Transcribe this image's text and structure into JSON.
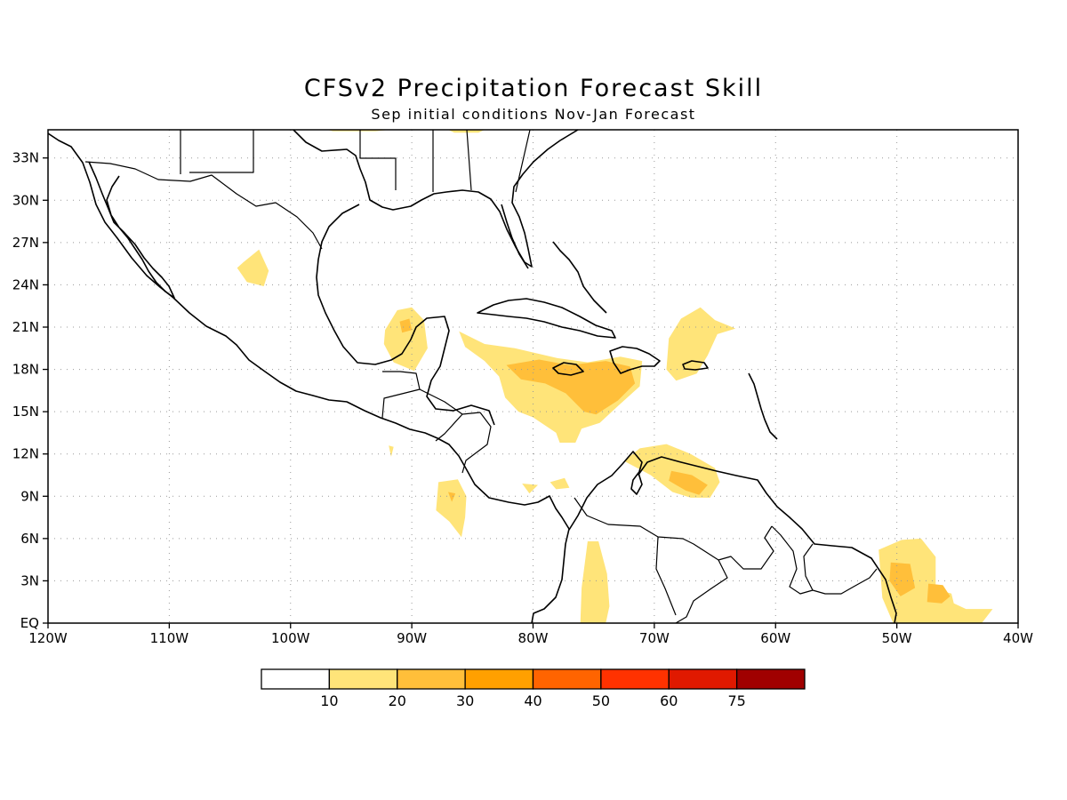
{
  "title": "CFSv2 Precipitation Forecast Skill",
  "subtitle": "Sep initial conditions   Nov-Jan Forecast",
  "map": {
    "lon_range": [
      -120,
      -40
    ],
    "lat_range": [
      0,
      35
    ],
    "lon_ticks": [
      {
        "value": -120,
        "label": "120W"
      },
      {
        "value": -110,
        "label": "110W"
      },
      {
        "value": -100,
        "label": "100W"
      },
      {
        "value": -90,
        "label": "90W"
      },
      {
        "value": -80,
        "label": "80W"
      },
      {
        "value": -70,
        "label": "70W"
      },
      {
        "value": -60,
        "label": "60W"
      },
      {
        "value": -50,
        "label": "50W"
      },
      {
        "value": -40,
        "label": "40W"
      }
    ],
    "lat_ticks": [
      {
        "value": 0,
        "label": "EQ"
      },
      {
        "value": 3,
        "label": "3N"
      },
      {
        "value": 6,
        "label": "6N"
      },
      {
        "value": 9,
        "label": "9N"
      },
      {
        "value": 12,
        "label": "12N"
      },
      {
        "value": 15,
        "label": "15N"
      },
      {
        "value": 18,
        "label": "18N"
      },
      {
        "value": 21,
        "label": "21N"
      },
      {
        "value": 24,
        "label": "24N"
      },
      {
        "value": 27,
        "label": "27N"
      },
      {
        "value": 30,
        "label": "30N"
      },
      {
        "value": 33,
        "label": "33N"
      }
    ],
    "grid": true
  },
  "colorbar": {
    "colors": [
      "#ffffff",
      "#ffe479",
      "#ffbf3a",
      "#ffa000",
      "#ff6400",
      "#ff3200",
      "#e01900",
      "#a00000"
    ],
    "labels": [
      "10",
      "20",
      "30",
      "40",
      "50",
      "60",
      "75"
    ]
  },
  "skill_regions": [
    {
      "name": "northern-mexico",
      "level": 1,
      "pts": [
        [
          -103.9,
          25.6
        ],
        [
          -102.6,
          26.5
        ],
        [
          -101.8,
          25.0
        ],
        [
          -102.2,
          23.9
        ],
        [
          -103.6,
          24.2
        ],
        [
          -104.4,
          25.2
        ]
      ]
    },
    {
      "name": "us-gulf-coast-west",
      "level": 1,
      "pts": [
        [
          -96.5,
          34.9
        ],
        [
          -93.0,
          34.9
        ],
        [
          -91.8,
          35
        ],
        [
          -97,
          35
        ]
      ]
    },
    {
      "name": "us-gulf-coast-east",
      "level": 1,
      "pts": [
        [
          -87,
          35
        ],
        [
          -84,
          35
        ],
        [
          -84.5,
          34.8
        ],
        [
          -86.5,
          34.8
        ]
      ]
    },
    {
      "name": "yucatan",
      "level": 1,
      "pts": [
        [
          -92.2,
          20.8
        ],
        [
          -91.2,
          22.2
        ],
        [
          -90.0,
          22.4
        ],
        [
          -89.0,
          21.5
        ],
        [
          -88.7,
          19.5
        ],
        [
          -89.8,
          17.9
        ],
        [
          -91.5,
          18.5
        ],
        [
          -92.3,
          19.8
        ]
      ]
    },
    {
      "name": "yucatan-core",
      "level": 2,
      "pts": [
        [
          -91.0,
          21.4
        ],
        [
          -90.2,
          21.6
        ],
        [
          -90.0,
          20.8
        ],
        [
          -90.8,
          20.6
        ]
      ]
    },
    {
      "name": "western-caribbean",
      "level": 1,
      "pts": [
        [
          -86.1,
          20.7
        ],
        [
          -84.0,
          19.8
        ],
        [
          -81.5,
          19.5
        ],
        [
          -78.0,
          18.8
        ],
        [
          -75.5,
          18.5
        ],
        [
          -72.8,
          18.9
        ],
        [
          -71.0,
          18.6
        ],
        [
          -71.2,
          16.8
        ],
        [
          -73.0,
          15.4
        ],
        [
          -74.5,
          14.2
        ],
        [
          -76.0,
          13.8
        ],
        [
          -76.5,
          12.8
        ],
        [
          -77.8,
          12.8
        ],
        [
          -78.1,
          13.5
        ],
        [
          -80.0,
          14.6
        ],
        [
          -81.2,
          15.0
        ],
        [
          -82.3,
          16.0
        ],
        [
          -82.8,
          17.5
        ],
        [
          -84.0,
          18.6
        ],
        [
          -85.6,
          19.6
        ]
      ]
    },
    {
      "name": "western-caribbean-core",
      "level": 2,
      "pts": [
        [
          -82.2,
          18.3
        ],
        [
          -79.5,
          18.7
        ],
        [
          -77.0,
          18.3
        ],
        [
          -74.0,
          18.6
        ],
        [
          -72.0,
          18.2
        ],
        [
          -71.6,
          17.0
        ],
        [
          -73.0,
          15.8
        ],
        [
          -74.8,
          14.8
        ],
        [
          -75.8,
          15.0
        ],
        [
          -77.3,
          16.3
        ],
        [
          -79.0,
          17.0
        ],
        [
          -81.0,
          17.3
        ]
      ]
    },
    {
      "name": "puerto-rico-region",
      "level": 1,
      "pts": [
        [
          -67.8,
          21.6
        ],
        [
          -66.2,
          22.4
        ],
        [
          -65.0,
          21.5
        ],
        [
          -63.3,
          20.9
        ],
        [
          -64.8,
          20.5
        ],
        [
          -65.6,
          19.0
        ],
        [
          -66.5,
          17.7
        ],
        [
          -68.2,
          17.2
        ],
        [
          -69.0,
          18.0
        ],
        [
          -68.8,
          20.2
        ]
      ]
    },
    {
      "name": "venezuela-coast",
      "level": 1,
      "pts": [
        [
          -71.2,
          12.4
        ],
        [
          -69.0,
          12.7
        ],
        [
          -67.0,
          12.0
        ],
        [
          -65.0,
          11.0
        ],
        [
          -64.6,
          10.0
        ],
        [
          -65.4,
          8.9
        ],
        [
          -67.0,
          8.9
        ],
        [
          -68.5,
          9.3
        ],
        [
          -70.3,
          10.5
        ],
        [
          -72.5,
          11.5
        ]
      ]
    },
    {
      "name": "venezuela-core",
      "level": 2,
      "pts": [
        [
          -68.6,
          10.8
        ],
        [
          -66.9,
          10.5
        ],
        [
          -65.6,
          9.8
        ],
        [
          -66.3,
          9.1
        ],
        [
          -67.4,
          9.4
        ],
        [
          -68.8,
          10.1
        ]
      ]
    },
    {
      "name": "pacific-offshore-a",
      "level": 1,
      "pts": [
        [
          -87.8,
          10.0
        ],
        [
          -86.2,
          10.2
        ],
        [
          -85.5,
          9.0
        ],
        [
          -85.6,
          7.5
        ],
        [
          -85.9,
          6.1
        ],
        [
          -86.9,
          7.2
        ],
        [
          -88.0,
          8.0
        ]
      ]
    },
    {
      "name": "pacific-offshore-a-core",
      "level": 2,
      "pts": [
        [
          -87.0,
          9.3
        ],
        [
          -86.4,
          9.2
        ],
        [
          -86.7,
          8.6
        ]
      ]
    },
    {
      "name": "small-panama-patch",
      "level": 1,
      "pts": [
        [
          -78.6,
          10.0
        ],
        [
          -77.4,
          10.3
        ],
        [
          -77.0,
          9.6
        ],
        [
          -78.1,
          9.5
        ]
      ]
    },
    {
      "name": "central-america-patch",
      "level": 1,
      "pts": [
        [
          -80.9,
          9.9
        ],
        [
          -79.6,
          9.8
        ],
        [
          -80.3,
          9.2
        ]
      ]
    },
    {
      "name": "small-pacific-sliver",
      "level": 1,
      "pts": [
        [
          -91.9,
          12.6
        ],
        [
          -91.5,
          12.5
        ],
        [
          -91.7,
          11.8
        ]
      ]
    },
    {
      "name": "colombia-pacific",
      "level": 1,
      "pts": [
        [
          -75.5,
          5.8
        ],
        [
          -74.6,
          5.8
        ],
        [
          -73.9,
          3.5
        ],
        [
          -73.7,
          1.2
        ],
        [
          -74.0,
          0
        ],
        [
          -76.1,
          0
        ],
        [
          -76.0,
          2.5
        ]
      ]
    },
    {
      "name": "atlantic-amazon",
      "level": 1,
      "pts": [
        [
          -51.5,
          5.2
        ],
        [
          -49.6,
          5.9
        ],
        [
          -48.0,
          6.0
        ],
        [
          -46.8,
          4.7
        ],
        [
          -46.8,
          2.4
        ],
        [
          -45.5,
          2.1
        ],
        [
          -45.3,
          1.4
        ],
        [
          -44.3,
          1.0
        ],
        [
          -42.1,
          1.0
        ],
        [
          -43.0,
          0
        ],
        [
          -48.0,
          0
        ],
        [
          -50.3,
          0
        ],
        [
          -51.2,
          1.8
        ]
      ]
    },
    {
      "name": "atlantic-amazon-core-a",
      "level": 2,
      "pts": [
        [
          -50.5,
          4.3
        ],
        [
          -48.9,
          4.2
        ],
        [
          -48.5,
          2.5
        ],
        [
          -49.7,
          1.9
        ],
        [
          -50.6,
          3.0
        ]
      ]
    },
    {
      "name": "atlantic-amazon-core-b",
      "level": 2,
      "pts": [
        [
          -47.4,
          2.8
        ],
        [
          -46.2,
          2.7
        ],
        [
          -45.6,
          1.9
        ],
        [
          -46.3,
          1.4
        ],
        [
          -47.5,
          1.5
        ]
      ]
    }
  ]
}
